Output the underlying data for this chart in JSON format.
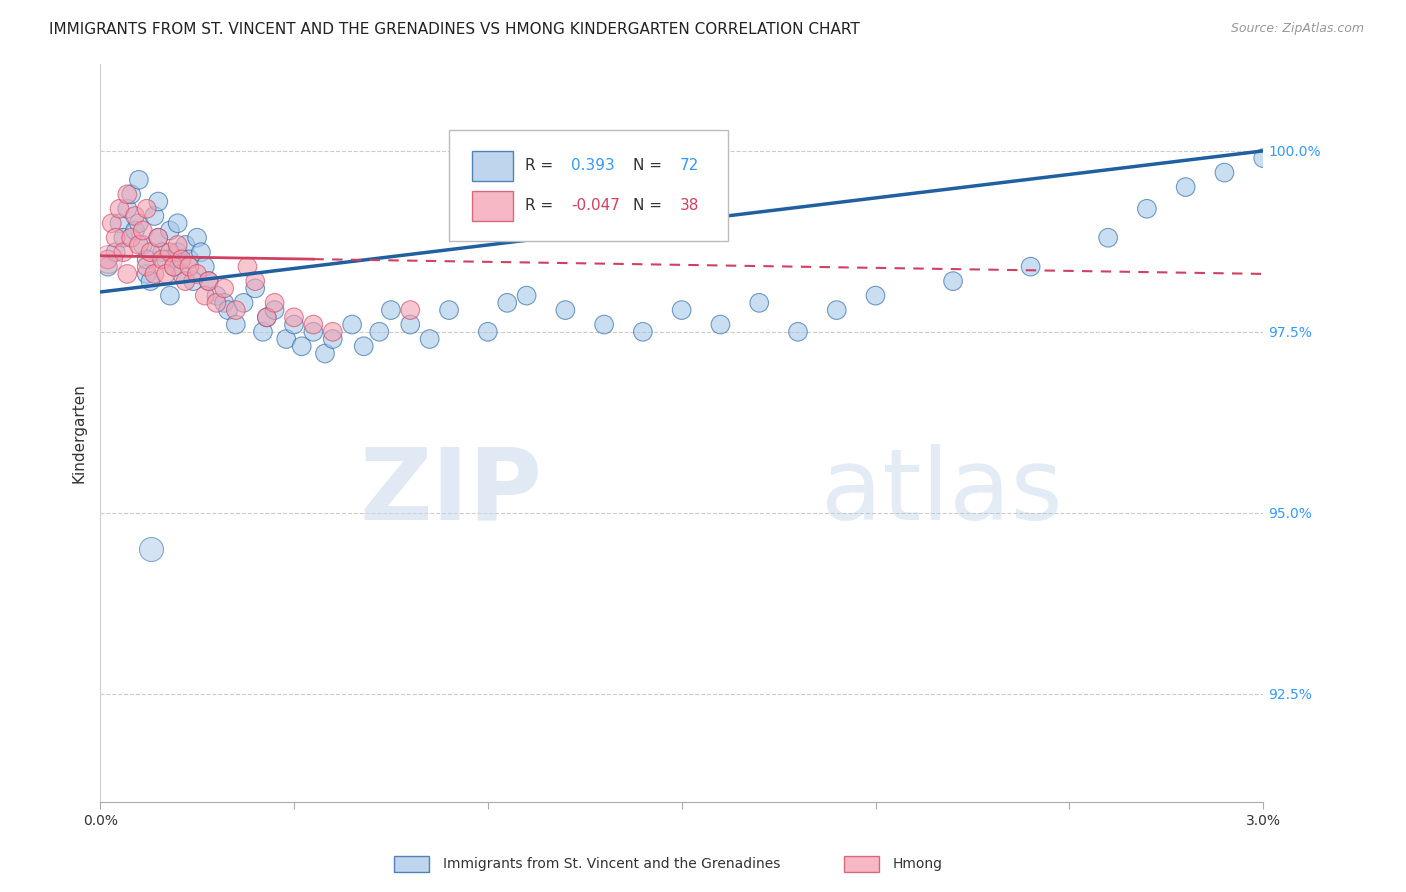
{
  "title": "IMMIGRANTS FROM ST. VINCENT AND THE GRENADINES VS HMONG KINDERGARTEN CORRELATION CHART",
  "source": "Source: ZipAtlas.com",
  "ylabel": "Kindergarten",
  "yticks": [
    92.5,
    95.0,
    97.5,
    100.0
  ],
  "ytick_labels": [
    "92.5%",
    "95.0%",
    "97.5%",
    "100.0%"
  ],
  "xmin": 0.0,
  "xmax": 3.0,
  "ymin": 91.0,
  "ymax": 101.2,
  "blue_color": "#a8c8e8",
  "pink_color": "#f4a0b0",
  "blue_line_color": "#2060a0",
  "pink_line_color": "#d04060",
  "legend_label_blue": "Immigrants from St. Vincent and the Grenadines",
  "legend_label_pink": "Hmong",
  "blue_scatter_x": [
    0.02,
    0.04,
    0.05,
    0.06,
    0.07,
    0.08,
    0.09,
    0.1,
    0.1,
    0.11,
    0.12,
    0.12,
    0.13,
    0.14,
    0.15,
    0.15,
    0.16,
    0.17,
    0.18,
    0.18,
    0.19,
    0.2,
    0.2,
    0.21,
    0.22,
    0.23,
    0.24,
    0.25,
    0.26,
    0.27,
    0.28,
    0.3,
    0.32,
    0.33,
    0.35,
    0.37,
    0.4,
    0.42,
    0.43,
    0.45,
    0.48,
    0.5,
    0.52,
    0.55,
    0.58,
    0.6,
    0.65,
    0.68,
    0.72,
    0.75,
    0.8,
    0.85,
    0.9,
    1.0,
    1.05,
    1.1,
    1.2,
    1.3,
    1.4,
    1.5,
    1.6,
    1.7,
    1.8,
    1.9,
    2.0,
    2.2,
    2.4,
    2.6,
    2.7,
    2.8,
    2.9,
    3.0
  ],
  "blue_scatter_y": [
    98.4,
    98.6,
    99.0,
    98.8,
    99.2,
    99.4,
    98.9,
    99.6,
    99.0,
    98.7,
    98.3,
    98.5,
    98.2,
    99.1,
    98.8,
    99.3,
    98.6,
    98.5,
    98.0,
    98.9,
    98.4,
    98.6,
    99.0,
    98.3,
    98.7,
    98.5,
    98.2,
    98.8,
    98.6,
    98.4,
    98.2,
    98.0,
    97.9,
    97.8,
    97.6,
    97.9,
    98.1,
    97.5,
    97.7,
    97.8,
    97.4,
    97.6,
    97.3,
    97.5,
    97.2,
    97.4,
    97.6,
    97.3,
    97.5,
    97.8,
    97.6,
    97.4,
    97.8,
    97.5,
    97.9,
    98.0,
    97.8,
    97.6,
    97.5,
    97.8,
    97.6,
    97.9,
    97.5,
    97.8,
    98.0,
    98.2,
    98.4,
    98.8,
    99.2,
    99.5,
    99.7,
    99.9
  ],
  "blue_scatter_sizes": [
    30,
    30,
    30,
    30,
    30,
    30,
    30,
    30,
    30,
    30,
    30,
    30,
    30,
    30,
    30,
    30,
    30,
    30,
    30,
    30,
    30,
    30,
    30,
    30,
    30,
    30,
    30,
    30,
    30,
    30,
    30,
    30,
    30,
    30,
    30,
    30,
    30,
    30,
    30,
    30,
    30,
    30,
    30,
    30,
    30,
    30,
    30,
    30,
    30,
    30,
    30,
    30,
    30,
    30,
    30,
    30,
    30,
    30,
    30,
    30,
    30,
    30,
    30,
    30,
    30,
    30,
    30,
    30,
    30,
    30,
    30,
    30
  ],
  "blue_large_x": [
    0.13
  ],
  "blue_large_y": [
    94.5
  ],
  "blue_large_size": [
    300
  ],
  "pink_scatter_x": [
    0.02,
    0.03,
    0.04,
    0.05,
    0.06,
    0.07,
    0.07,
    0.08,
    0.09,
    0.1,
    0.11,
    0.12,
    0.12,
    0.13,
    0.14,
    0.15,
    0.16,
    0.17,
    0.18,
    0.19,
    0.2,
    0.21,
    0.22,
    0.23,
    0.25,
    0.27,
    0.28,
    0.3,
    0.32,
    0.35,
    0.38,
    0.4,
    0.43,
    0.45,
    0.5,
    0.55,
    0.6,
    0.8
  ],
  "pink_scatter_y": [
    98.5,
    99.0,
    98.8,
    99.2,
    98.6,
    99.4,
    98.3,
    98.8,
    99.1,
    98.7,
    98.9,
    98.4,
    99.2,
    98.6,
    98.3,
    98.8,
    98.5,
    98.3,
    98.6,
    98.4,
    98.7,
    98.5,
    98.2,
    98.4,
    98.3,
    98.0,
    98.2,
    97.9,
    98.1,
    97.8,
    98.4,
    98.2,
    97.7,
    97.9,
    97.7,
    97.6,
    97.5,
    97.8
  ],
  "pink_scatter_sizes": [
    30,
    30,
    30,
    30,
    30,
    30,
    30,
    30,
    30,
    30,
    30,
    30,
    30,
    30,
    30,
    30,
    30,
    30,
    30,
    30,
    30,
    30,
    30,
    30,
    30,
    30,
    30,
    30,
    30,
    30,
    30,
    30,
    30,
    30,
    30,
    30,
    30,
    30
  ],
  "pink_large_x": [
    0.02
  ],
  "pink_large_y": [
    98.5
  ],
  "pink_large_size": [
    400
  ],
  "blue_line_x0": 0.0,
  "blue_line_y0": 98.05,
  "blue_line_x1": 3.0,
  "blue_line_y1": 100.0,
  "pink_line_x0": 0.0,
  "pink_line_y0": 98.55,
  "pink_line_x1": 3.0,
  "pink_line_y1": 98.3,
  "pink_solid_end_x": 0.55
}
